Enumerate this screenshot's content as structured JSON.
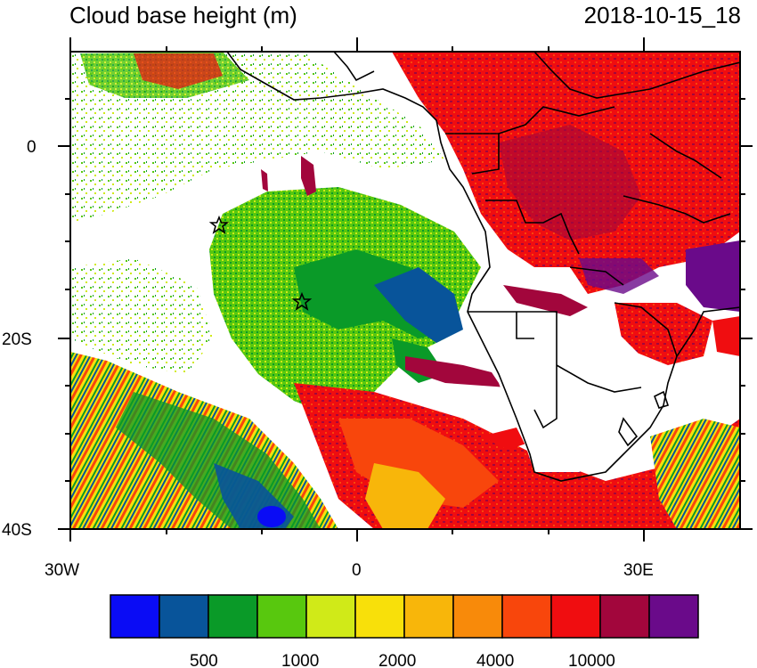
{
  "title": "Cloud base height (m)",
  "timestamp": "2018-10-15_18",
  "axes": {
    "y_ticks": [
      "0",
      "20S",
      "40S"
    ],
    "x_ticks": [
      "30W",
      "0",
      "30E"
    ]
  },
  "markers": [
    {
      "name": "star-marker-north",
      "lon": -14.5,
      "lat": -8.0
    },
    {
      "name": "star-marker-central",
      "lon": -5.7,
      "lat": -16.0
    }
  ],
  "colorbar": {
    "colors": [
      "#0a0cf5",
      "#08549a",
      "#0a9a28",
      "#58c80e",
      "#d0ea18",
      "#f8e00a",
      "#f8b60a",
      "#f88a0a",
      "#f8460c",
      "#f00d10",
      "#a2063c",
      "#6a0a8a"
    ],
    "labels": [
      "500",
      "1000",
      "2000",
      "4000",
      "10000"
    ]
  },
  "colors": {
    "ocean_low": "#58c80e",
    "ocean_mid": "#0a9a28",
    "ocean_deep": "#08549a",
    "high": "#f00d10",
    "very_high": "#a2063c",
    "top": "#6a0a8a",
    "yellow": "#d0ea18",
    "orange": "#f8b60a"
  }
}
